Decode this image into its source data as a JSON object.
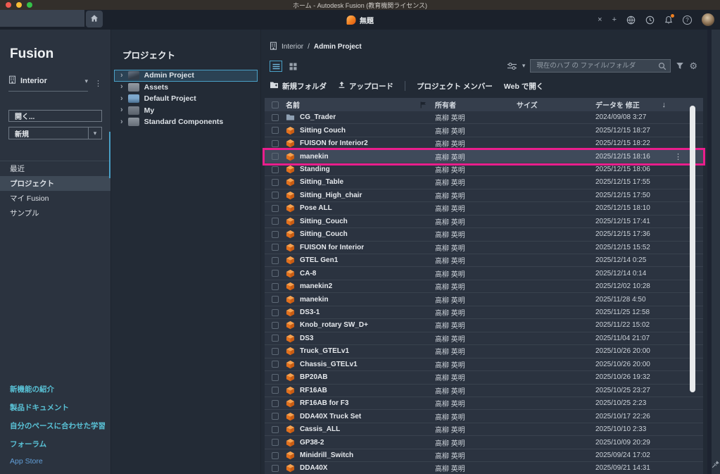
{
  "titlebar": {
    "title": "ホーム - Autodesk Fusion (教育機関ライセンス)"
  },
  "tabbar": {
    "tab_title": "無題"
  },
  "sidebar": {
    "brand": "Fusion",
    "hub": {
      "name": "Interior"
    },
    "open_button": "開く...",
    "new_button": "新規",
    "nav": [
      {
        "label": "最近"
      },
      {
        "label": "プロジェクト",
        "active": true
      },
      {
        "label": "マイ Fusion"
      },
      {
        "label": "サンプル"
      }
    ],
    "links": [
      "新機能の紹介",
      "製品ドキュメント",
      "自分のペースに合わせた学習",
      "フォーラム",
      "App Store"
    ]
  },
  "projects_panel": {
    "title": "プロジェクト",
    "items": [
      {
        "label": "Admin Project",
        "selected": true
      },
      {
        "label": "Assets"
      },
      {
        "label": "Default Project"
      },
      {
        "label": "My"
      },
      {
        "label": "Standard Components"
      }
    ]
  },
  "content": {
    "breadcrumb": {
      "hub": "Interior",
      "separator": "/",
      "project": "Admin Project"
    },
    "search": {
      "placeholder": "現在のハブ の ファイル/フォルダ"
    },
    "toolbar": {
      "new_folder": "新規フォルダ",
      "upload": "アップロード",
      "project_members": "プロジェクト メンバー",
      "open_web": "Web で開く"
    },
    "table": {
      "columns": {
        "name": "名前",
        "owner": "所有者",
        "size": "サイズ",
        "modified": "データを 修正"
      },
      "rows": [
        {
          "name": "CG_Trader",
          "type": "folder",
          "owner": "高柳 英明",
          "size": "",
          "modified": "2024/09/08 3:27"
        },
        {
          "name": "Sitting Couch",
          "type": "design",
          "owner": "高柳 英明",
          "size": "",
          "modified": "2025/12/15 18:27"
        },
        {
          "name": "FUISON for Interior2",
          "type": "design",
          "owner": "高柳 英明",
          "size": "",
          "modified": "2025/12/15 18:22"
        },
        {
          "name": "manekin",
          "type": "design",
          "owner": "高柳 英明",
          "size": "",
          "modified": "2025/12/15 18:16",
          "highlighted": true
        },
        {
          "name": "Standing",
          "type": "design",
          "owner": "高柳 英明",
          "size": "",
          "modified": "2025/12/15 18:06"
        },
        {
          "name": "Sitting_Table",
          "type": "design",
          "owner": "高柳 英明",
          "size": "",
          "modified": "2025/12/15 17:55"
        },
        {
          "name": "Sitting_High_chair",
          "type": "design",
          "owner": "高柳 英明",
          "size": "",
          "modified": "2025/12/15 17:50"
        },
        {
          "name": "Pose ALL",
          "type": "design",
          "owner": "高柳 英明",
          "size": "",
          "modified": "2025/12/15 18:10"
        },
        {
          "name": "Sitting_Couch",
          "type": "design",
          "owner": "高柳 英明",
          "size": "",
          "modified": "2025/12/15 17:41"
        },
        {
          "name": "Sitting_Couch",
          "type": "design",
          "owner": "高柳 英明",
          "size": "",
          "modified": "2025/12/15 17:36"
        },
        {
          "name": "FUISON for Interior",
          "type": "design",
          "owner": "高柳 英明",
          "size": "",
          "modified": "2025/12/15 15:52"
        },
        {
          "name": "GTEL Gen1",
          "type": "design",
          "owner": "高柳 英明",
          "size": "",
          "modified": "2025/12/14 0:25"
        },
        {
          "name": "CA-8",
          "type": "design",
          "owner": "高柳 英明",
          "size": "",
          "modified": "2025/12/14 0:14"
        },
        {
          "name": "manekin2",
          "type": "design",
          "owner": "高柳 英明",
          "size": "",
          "modified": "2025/12/02 10:28"
        },
        {
          "name": "manekin",
          "type": "design",
          "owner": "高柳 英明",
          "size": "",
          "modified": "2025/11/28 4:50"
        },
        {
          "name": "DS3-1",
          "type": "design",
          "owner": "高柳 英明",
          "size": "",
          "modified": "2025/11/25 12:58"
        },
        {
          "name": "Knob_rotary SW_D+",
          "type": "design",
          "owner": "高柳 英明",
          "size": "",
          "modified": "2025/11/22 15:02"
        },
        {
          "name": "DS3",
          "type": "design",
          "owner": "高柳 英明",
          "size": "",
          "modified": "2025/11/04 21:07"
        },
        {
          "name": "Truck_GTELv1",
          "type": "design",
          "owner": "高柳 英明",
          "size": "",
          "modified": "2025/10/26 20:00"
        },
        {
          "name": "Chassis_GTELv1",
          "type": "design",
          "owner": "高柳 英明",
          "size": "",
          "modified": "2025/10/26 20:00"
        },
        {
          "name": "BP20AB",
          "type": "design",
          "owner": "高柳 英明",
          "size": "",
          "modified": "2025/10/26 19:32"
        },
        {
          "name": "RF16AB",
          "type": "design",
          "owner": "高柳 英明",
          "size": "",
          "modified": "2025/10/25 23:27"
        },
        {
          "name": "RF16AB for F3",
          "type": "design",
          "owner": "高柳 英明",
          "size": "",
          "modified": "2025/10/25 2:23"
        },
        {
          "name": "DDA40X Truck Set",
          "type": "design",
          "owner": "高柳 英明",
          "size": "",
          "modified": "2025/10/17 22:26"
        },
        {
          "name": "Cassis_ALL",
          "type": "design",
          "owner": "高柳 英明",
          "size": "",
          "modified": "2025/10/10 2:33"
        },
        {
          "name": "GP38-2",
          "type": "design",
          "owner": "高柳 英明",
          "size": "",
          "modified": "2025/10/09 20:29"
        },
        {
          "name": "Minidrill_Switch",
          "type": "design",
          "owner": "高柳 英明",
          "size": "",
          "modified": "2025/09/24 17:02"
        },
        {
          "name": "DDA40X",
          "type": "design",
          "owner": "高柳 英明",
          "size": "",
          "modified": "2025/09/21 14:31"
        }
      ]
    }
  },
  "glyphs": {
    "caret_down": "▾",
    "kebab": "⋮",
    "chevron_right": "›",
    "sort_desc": "↓",
    "gear": "⚙",
    "close": "×",
    "add": "+",
    "help": "?"
  },
  "colors": {
    "accent": "#4aa0c6",
    "magenta": "#e91e8c",
    "link_teal": "#59c2d6",
    "link_blue": "#629fd8",
    "cube_orange": "#e8772a",
    "scroll_thumb": "#e8eaec"
  }
}
